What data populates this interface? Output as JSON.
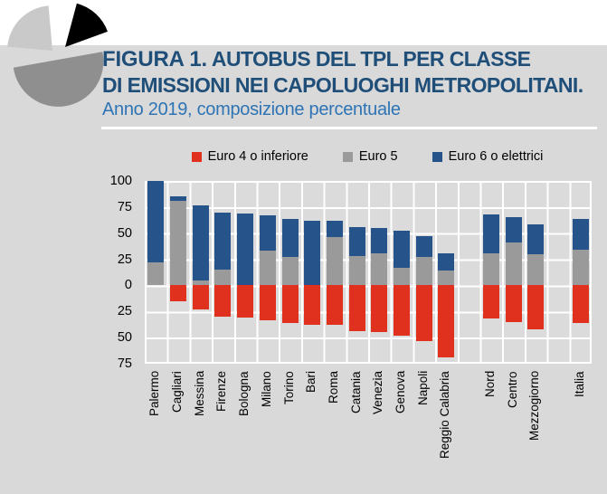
{
  "page": {
    "background": "#d9d9d9",
    "top_band": "#ffffff"
  },
  "logo": {
    "name": "pie-chart-logo",
    "colors": {
      "black_slice": "#000000",
      "light_slice": "#c9c9c9",
      "dark_slice": "#8f8f8f"
    }
  },
  "header": {
    "figure_label": "FIGURA 1.",
    "title_line1": " AUTOBUS DEL TPL PER CLASSE",
    "title_line2": "DI EMISSIONI NEI CAPOLUOGHI METROPOLITANI.",
    "subtitle": "Anno 2019, composizione percentuale",
    "title_color": "#1f4e79",
    "subtitle_color": "#2e74b5"
  },
  "chart_data": {
    "type": "bar",
    "variant": "diverging-stacked-percentage",
    "title": "Autobus del TPL per classe di emissioni nei capoluoghi metropolitani",
    "subtitle": "Anno 2019, composizione percentuale",
    "xlabel": "",
    "ylabel": "",
    "grid": true,
    "legend_position": "top",
    "y_axis": {
      "tick_labels": [
        "100",
        "75",
        "50",
        "25",
        "0",
        "25",
        "50",
        "75"
      ],
      "tick_values": [
        100,
        75,
        50,
        25,
        0,
        -25,
        -50,
        -75
      ],
      "ylim": [
        -75,
        100
      ]
    },
    "categories": [
      "Palermo",
      "Cagliari",
      "Messina",
      "Firenze",
      "Bologna",
      "Milano",
      "Torino",
      "Bari",
      "Roma",
      "Catania",
      "Venezia",
      "Genova",
      "Napoli",
      "Reggio Calabria",
      "Nord",
      "Centro",
      "Mezzogiorno",
      "Italia"
    ],
    "slot_categories": [
      "Palermo",
      "Cagliari",
      "Messina",
      "Firenze",
      "Bologna",
      "Milano",
      "Torino",
      "Bari",
      "Roma",
      "Catania",
      "Venezia",
      "Genova",
      "Napoli",
      "Reggio Calabria",
      "",
      "Nord",
      "Centro",
      "Mezzogiorno",
      "",
      "Italia"
    ],
    "series": [
      {
        "name": "Euro 4 o inferiore",
        "color": "#e0311f",
        "direction": "below-zero",
        "values": [
          0,
          15,
          23,
          30,
          31,
          33,
          36,
          38,
          38,
          44,
          45,
          48,
          53,
          69,
          null,
          32,
          35,
          42,
          null,
          36
        ]
      },
      {
        "name": "Euro 5",
        "color": "#9a9a9a",
        "direction": "above-zero",
        "values": [
          22,
          81,
          5,
          15,
          0,
          33,
          27,
          0,
          46,
          28,
          31,
          17,
          27,
          14,
          null,
          31,
          41,
          30,
          null,
          34
        ]
      },
      {
        "name": "Euro 6 o elettrici",
        "color": "#25538a",
        "direction": "above-zero",
        "values": [
          78,
          4,
          72,
          55,
          69,
          34,
          37,
          62,
          16,
          28,
          24,
          35,
          20,
          17,
          null,
          37,
          24,
          28,
          null,
          30
        ]
      }
    ]
  }
}
